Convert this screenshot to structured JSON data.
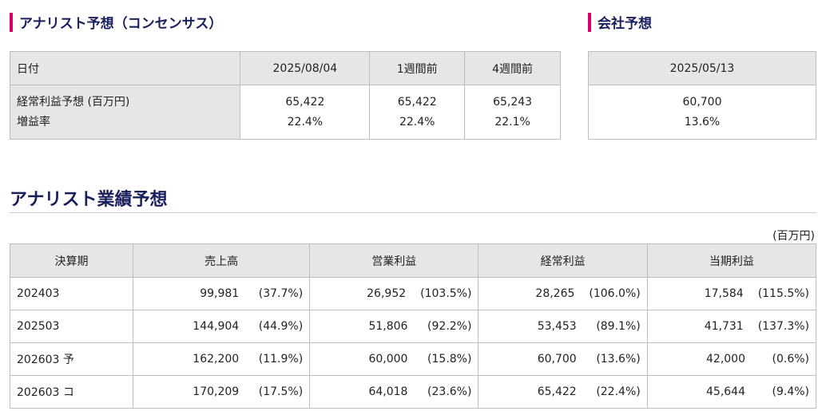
{
  "analyst_section": {
    "title": "アナリスト予想（コンセンサス）",
    "headers": [
      "日付",
      "2025/08/04",
      "1週間前",
      "4週間前"
    ],
    "row_labels": [
      "経常利益予想 (百万円)",
      "増益率"
    ],
    "columns": [
      {
        "profit": "65,422",
        "growth": "22.4%"
      },
      {
        "profit": "65,422",
        "growth": "22.4%"
      },
      {
        "profit": "65,243",
        "growth": "22.1%"
      }
    ]
  },
  "company_section": {
    "title": "会社予想",
    "date": "2025/05/13",
    "profit": "60,700",
    "growth": "13.6%"
  },
  "performance": {
    "title": "アナリスト業績予想",
    "unit": "(百万円)",
    "headers": [
      "決算期",
      "売上高",
      "営業利益",
      "経常利益",
      "当期利益"
    ],
    "rows": [
      {
        "period": "202403",
        "cells": [
          {
            "v": "99,981",
            "p": "(37.7%)"
          },
          {
            "v": "26,952",
            "p": "(103.5%)"
          },
          {
            "v": "28,265",
            "p": "(106.0%)"
          },
          {
            "v": "17,584",
            "p": "(115.5%)"
          }
        ]
      },
      {
        "period": "202503",
        "cells": [
          {
            "v": "144,904",
            "p": "(44.9%)"
          },
          {
            "v": "51,806",
            "p": "(92.2%)"
          },
          {
            "v": "53,453",
            "p": "(89.1%)"
          },
          {
            "v": "41,731",
            "p": "(137.3%)"
          }
        ]
      },
      {
        "period": "202603 予",
        "cells": [
          {
            "v": "162,200",
            "p": "(11.9%)"
          },
          {
            "v": "60,000",
            "p": "(15.8%)"
          },
          {
            "v": "60,700",
            "p": "(13.6%)"
          },
          {
            "v": "42,000",
            "p": "(0.6%)"
          }
        ]
      },
      {
        "period": "202603 コ",
        "cells": [
          {
            "v": "170,209",
            "p": "(17.5%)"
          },
          {
            "v": "64,018",
            "p": "(23.6%)"
          },
          {
            "v": "65,422",
            "p": "(22.4%)"
          },
          {
            "v": "45,644",
            "p": "(9.4%)"
          }
        ]
      }
    ]
  }
}
